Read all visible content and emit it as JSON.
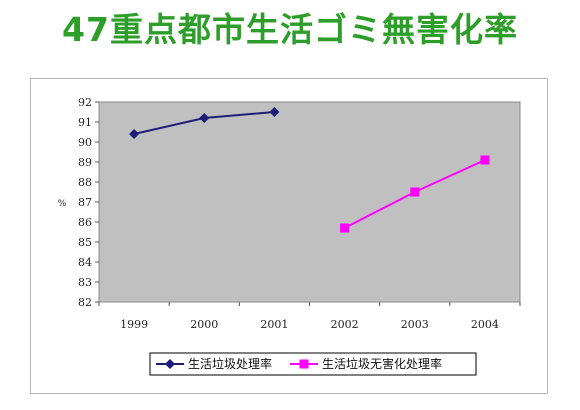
{
  "title": "47重点都市生活ゴミ無害化率",
  "colors": {
    "title": "#2e9e2a",
    "plot_bg": "#c0c0c0",
    "series1": "#1e1e78",
    "series2": "#ff00ff"
  },
  "chart_data": {
    "type": "line",
    "ylabel": "%",
    "categories": [
      "1999",
      "2000",
      "2001",
      "2002",
      "2003",
      "2004"
    ],
    "ylim": [
      82,
      92
    ],
    "yticks": [
      82,
      83,
      84,
      85,
      86,
      87,
      88,
      89,
      90,
      91,
      92
    ],
    "grid": false,
    "legend": "bottom",
    "series": [
      {
        "name": "生活垃圾处理率",
        "marker": "diamond",
        "points": [
          {
            "x": "1999",
            "y": 90.4
          },
          {
            "x": "2000",
            "y": 91.2
          },
          {
            "x": "2001",
            "y": 91.5
          }
        ]
      },
      {
        "name": "生活垃圾无害化处理率",
        "marker": "square",
        "points": [
          {
            "x": "2002",
            "y": 85.7
          },
          {
            "x": "2003",
            "y": 87.5
          },
          {
            "x": "2004",
            "y": 89.1
          }
        ]
      }
    ]
  }
}
